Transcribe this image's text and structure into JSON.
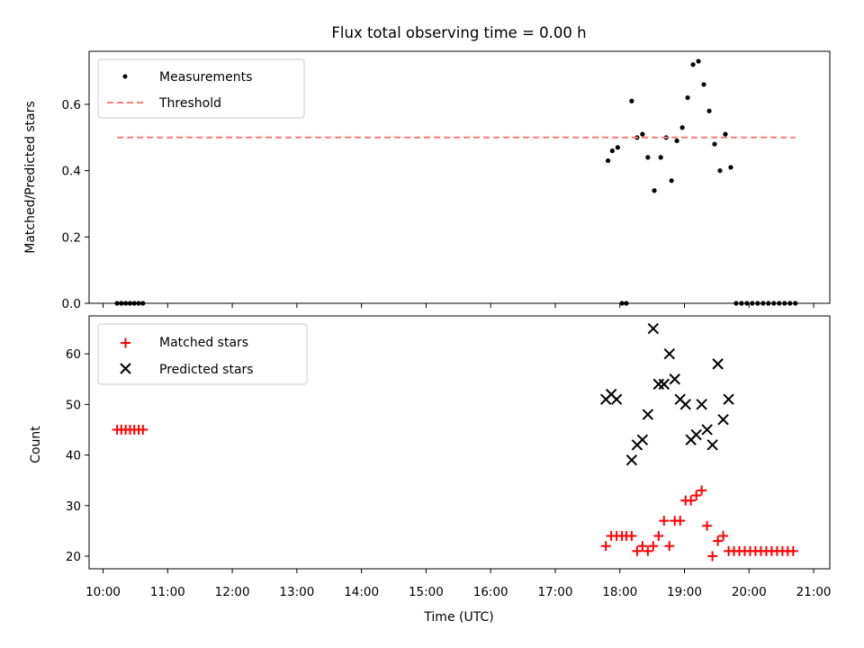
{
  "chart_data": [
    {
      "type": "scatter",
      "title": "Flux total observing time = 0.00 h",
      "xlabel": "",
      "ylabel": "Matched/Predicted stars",
      "xlim": [
        "09:47",
        "21:15"
      ],
      "ylim": [
        0,
        0.76
      ],
      "yticks": [
        "0.0",
        "0.2",
        "0.4",
        "0.6"
      ],
      "legend_position": "upper-left",
      "series": [
        {
          "name": "Measurements",
          "color": "#000000",
          "marker": "dot",
          "points": [
            [
              "10:13",
              0
            ],
            [
              "10:17",
              0
            ],
            [
              "10:21",
              0
            ],
            [
              "10:25",
              0
            ],
            [
              "10:29",
              0
            ],
            [
              "10:33",
              0
            ],
            [
              "10:37",
              0
            ],
            [
              "17:49",
              0.43
            ],
            [
              "17:53",
              0.46
            ],
            [
              "17:58",
              0.47
            ],
            [
              "18:02",
              0
            ],
            [
              "18:06",
              0
            ],
            [
              "18:11",
              0.61
            ],
            [
              "18:16",
              0.5
            ],
            [
              "18:21",
              0.51
            ],
            [
              "18:26",
              0.44
            ],
            [
              "18:32",
              0.34
            ],
            [
              "18:38",
              0.44
            ],
            [
              "18:43",
              0.5
            ],
            [
              "18:48",
              0.37
            ],
            [
              "18:53",
              0.49
            ],
            [
              "18:58",
              0.53
            ],
            [
              "19:03",
              0.62
            ],
            [
              "19:08",
              0.72
            ],
            [
              "19:13",
              0.73
            ],
            [
              "19:18",
              0.66
            ],
            [
              "19:23",
              0.58
            ],
            [
              "19:28",
              0.48
            ],
            [
              "19:33",
              0.4
            ],
            [
              "19:38",
              0.51
            ],
            [
              "19:43",
              0.41
            ],
            [
              "19:48",
              0
            ],
            [
              "19:53",
              0
            ],
            [
              "19:58",
              0
            ],
            [
              "20:03",
              0
            ],
            [
              "20:08",
              0
            ],
            [
              "20:13",
              0
            ],
            [
              "20:18",
              0
            ],
            [
              "20:23",
              0
            ],
            [
              "20:28",
              0
            ],
            [
              "20:33",
              0
            ],
            [
              "20:38",
              0
            ],
            [
              "20:43",
              0
            ]
          ]
        },
        {
          "name": "Threshold",
          "color": "#ff7878",
          "style": "dashed-line",
          "points": [
            [
              "10:13",
              0.5
            ],
            [
              "20:43",
              0.5
            ]
          ]
        }
      ]
    },
    {
      "type": "scatter",
      "title": "",
      "xlabel": "Time (UTC)",
      "ylabel": "Count",
      "xlim": [
        "09:47",
        "21:15"
      ],
      "ylim": [
        17.5,
        67.5
      ],
      "yticks": [
        "20",
        "30",
        "40",
        "50",
        "60"
      ],
      "xticks": [
        "10:00",
        "11:00",
        "12:00",
        "13:00",
        "14:00",
        "15:00",
        "16:00",
        "17:00",
        "18:00",
        "19:00",
        "20:00",
        "21:00"
      ],
      "legend_position": "upper-left",
      "series": [
        {
          "name": "Matched stars",
          "color": "#ff0000",
          "marker": "plus",
          "points": [
            [
              "10:13",
              45
            ],
            [
              "10:17",
              45
            ],
            [
              "10:21",
              45
            ],
            [
              "10:25",
              45
            ],
            [
              "10:29",
              45
            ],
            [
              "10:33",
              45
            ],
            [
              "10:37",
              45
            ],
            [
              "17:47",
              22
            ],
            [
              "17:52",
              24
            ],
            [
              "17:57",
              24
            ],
            [
              "18:02",
              24
            ],
            [
              "18:06",
              24
            ],
            [
              "18:11",
              24
            ],
            [
              "18:16",
              21
            ],
            [
              "18:21",
              22
            ],
            [
              "18:26",
              21
            ],
            [
              "18:31",
              22
            ],
            [
              "18:36",
              24
            ],
            [
              "18:41",
              27
            ],
            [
              "18:46",
              22
            ],
            [
              "18:51",
              27
            ],
            [
              "18:56",
              27
            ],
            [
              "19:01",
              31
            ],
            [
              "19:06",
              31
            ],
            [
              "19:11",
              32
            ],
            [
              "19:16",
              33
            ],
            [
              "19:21",
              26
            ],
            [
              "19:26",
              20
            ],
            [
              "19:31",
              23
            ],
            [
              "19:36",
              24
            ],
            [
              "19:41",
              21
            ],
            [
              "19:46",
              21
            ],
            [
              "19:51",
              21
            ],
            [
              "19:56",
              21
            ],
            [
              "20:01",
              21
            ],
            [
              "20:06",
              21
            ],
            [
              "20:11",
              21
            ],
            [
              "20:16",
              21
            ],
            [
              "20:21",
              21
            ],
            [
              "20:26",
              21
            ],
            [
              "20:31",
              21
            ],
            [
              "20:36",
              21
            ],
            [
              "20:41",
              21
            ]
          ]
        },
        {
          "name": "Predicted stars",
          "color": "#000000",
          "marker": "x",
          "points": [
            [
              "17:47",
              51
            ],
            [
              "17:52",
              52
            ],
            [
              "17:57",
              51
            ],
            [
              "18:11",
              39
            ],
            [
              "18:16",
              42
            ],
            [
              "18:21",
              43
            ],
            [
              "18:26",
              48
            ],
            [
              "18:31",
              65
            ],
            [
              "18:36",
              54
            ],
            [
              "18:41",
              54
            ],
            [
              "18:46",
              60
            ],
            [
              "18:51",
              55
            ],
            [
              "18:56",
              51
            ],
            [
              "19:01",
              50
            ],
            [
              "19:06",
              43
            ],
            [
              "19:11",
              44
            ],
            [
              "19:16",
              50
            ],
            [
              "19:21",
              45
            ],
            [
              "19:26",
              42
            ],
            [
              "19:31",
              58
            ],
            [
              "19:36",
              47
            ],
            [
              "19:41",
              51
            ]
          ]
        }
      ]
    }
  ]
}
